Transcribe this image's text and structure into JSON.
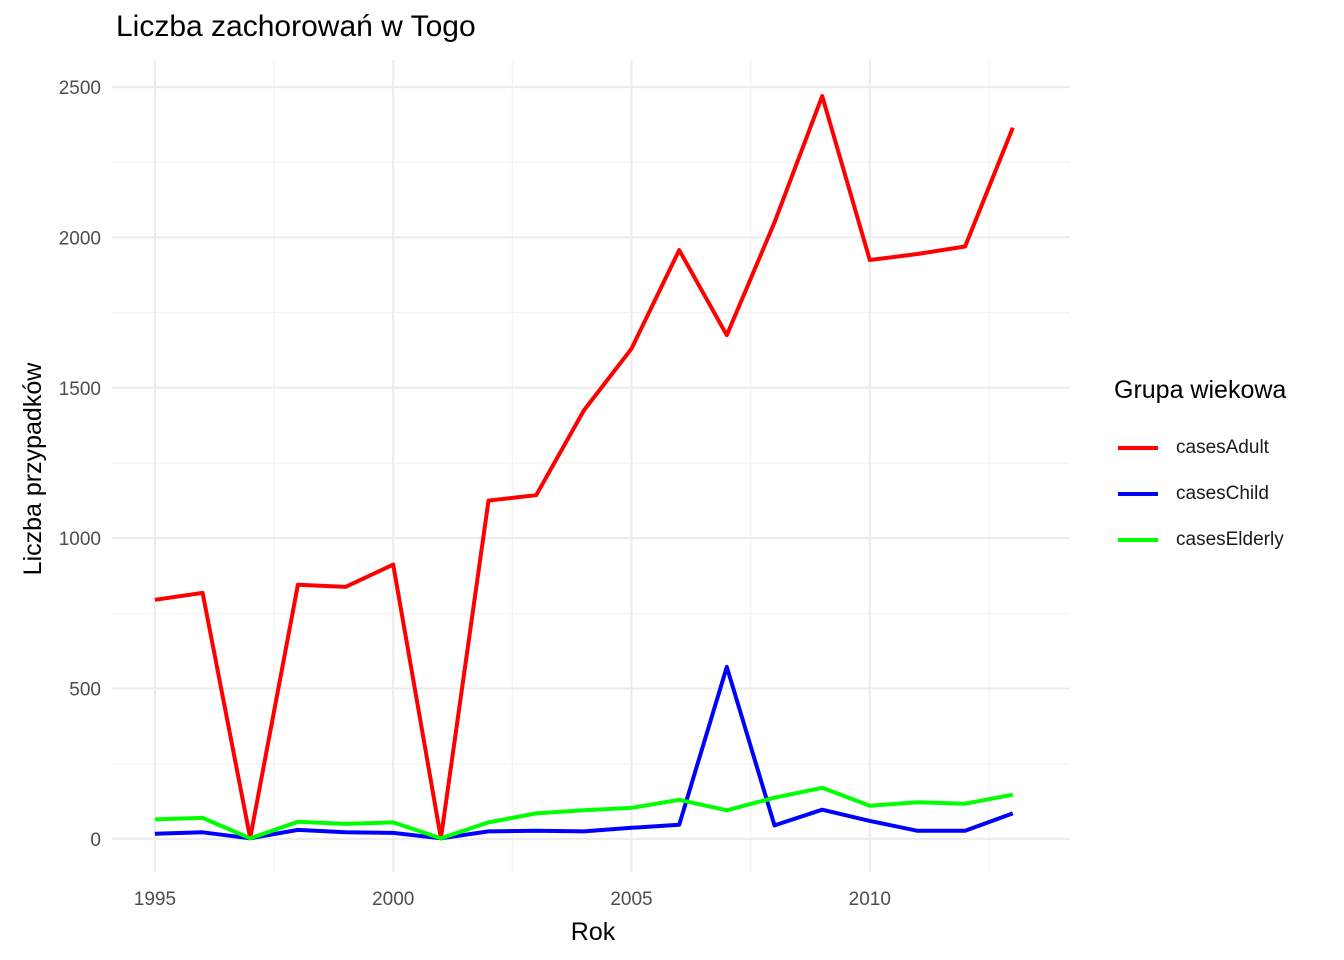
{
  "chart_data": {
    "type": "line",
    "title": "Liczba zachorowań w Togo",
    "xlabel": "Rok",
    "ylabel": "Liczba przypadków",
    "xlim": [
      1994.1,
      2014.2
    ],
    "ylim": [
      -110,
      2590
    ],
    "x_ticks": [
      1995,
      2000,
      2005,
      2010
    ],
    "y_ticks": [
      0,
      500,
      1000,
      1500,
      2000,
      2500
    ],
    "grid": true,
    "legend": {
      "title": "Grupa wiekowa",
      "position": "right"
    },
    "x": [
      1995,
      1996,
      1997,
      1998,
      1999,
      2000,
      2001,
      2002,
      2003,
      2004,
      2005,
      2006,
      2007,
      2008,
      2009,
      2010,
      2011,
      2012,
      2013
    ],
    "series": [
      {
        "name": "casesAdult",
        "color": "#ff0000",
        "values": [
          795,
          818,
          3,
          845,
          838,
          912,
          2,
          1125,
          1143,
          1425,
          1630,
          1958,
          1675,
          2050,
          2470,
          1925,
          1945,
          1970,
          2365
        ]
      },
      {
        "name": "casesChild",
        "color": "#0000ff",
        "values": [
          17,
          22,
          2,
          30,
          22,
          20,
          2,
          25,
          27,
          25,
          37,
          47,
          572,
          45,
          97,
          60,
          27,
          27,
          85
        ]
      },
      {
        "name": "casesElderly",
        "color": "#00ff00",
        "values": [
          65,
          70,
          2,
          57,
          50,
          55,
          2,
          55,
          85,
          95,
          103,
          130,
          95,
          137,
          170,
          110,
          122,
          117,
          147
        ]
      }
    ]
  }
}
